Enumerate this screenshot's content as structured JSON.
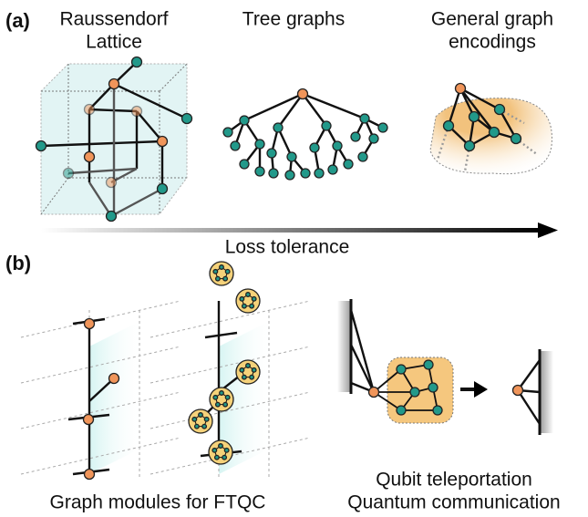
{
  "panel_a": {
    "label": "(a)",
    "columns": [
      {
        "title_lines": [
          "Raussendorf",
          "Lattice"
        ]
      },
      {
        "title_lines": [
          "Tree graphs"
        ]
      },
      {
        "title_lines": [
          "General graph",
          "encodings"
        ]
      }
    ],
    "arrow_label": "Loss tolerance"
  },
  "panel_b": {
    "label": "(b)",
    "left_caption": "Graph modules for FTQC",
    "right_caption_lines": [
      "Qubit teleportation",
      "Quantum communication"
    ]
  }
}
